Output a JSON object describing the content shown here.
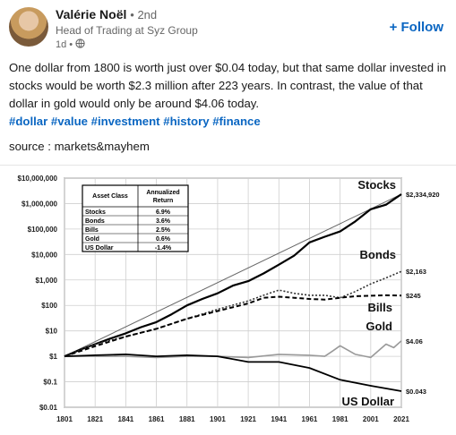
{
  "author": {
    "name": "Valérie Noël",
    "degree": "• 2nd",
    "headline": "Head of Trading at Syz Group",
    "time": "1d •"
  },
  "follow_label": "+ Follow",
  "post_text": "One dollar from 1800 is worth just over $0.04 today, but that same dollar invested in stocks would be worth $2.3 million after 223 years. In contrast, the value of that dollar in gold would only be around $4.06 today.",
  "hashtags": "#dollar #value #investment #history #finance",
  "source_text": "source : markets&mayhem",
  "chart_data": {
    "type": "line",
    "title": "",
    "xlabel": "",
    "ylabel": "",
    "y_scale": "log",
    "xlim": [
      1801,
      2021
    ],
    "ylim": [
      0.01,
      10000000
    ],
    "x_ticks": [
      "1801",
      "1821",
      "1841",
      "1861",
      "1881",
      "1901",
      "1921",
      "1941",
      "1961",
      "1981",
      "2001",
      "2021"
    ],
    "y_ticks": [
      "$10,000,000",
      "$1,000,000",
      "$100,000",
      "$10,000",
      "$1,000",
      "$100",
      "$10",
      "$1",
      "$0.1",
      "$0.01"
    ],
    "table": {
      "headers": [
        "Asset Class",
        "Annualized Return"
      ],
      "rows": [
        [
          "Stocks",
          "6.9%"
        ],
        [
          "Bonds",
          "3.6%"
        ],
        [
          "Bills",
          "2.5%"
        ],
        [
          "Gold",
          "0.6%"
        ],
        [
          "US Dollar",
          "-1.4%"
        ]
      ]
    },
    "series": [
      {
        "name": "Stocks",
        "end_label": "$2,334,920",
        "x": [
          1801,
          1811,
          1821,
          1831,
          1841,
          1851,
          1861,
          1871,
          1881,
          1891,
          1901,
          1911,
          1921,
          1931,
          1941,
          1951,
          1961,
          1971,
          1981,
          1991,
          2001,
          2011,
          2021
        ],
        "y": [
          1,
          1.8,
          3,
          5,
          8,
          14,
          22,
          45,
          100,
          180,
          300,
          600,
          900,
          1800,
          4000,
          9000,
          30000,
          50000,
          80000,
          200000,
          600000,
          900000,
          2334920
        ]
      },
      {
        "name": "Bonds",
        "end_label": "$2,163",
        "x": [
          1801,
          1821,
          1841,
          1861,
          1881,
          1901,
          1921,
          1931,
          1941,
          1951,
          1961,
          1971,
          1981,
          1991,
          2001,
          2011,
          2021
        ],
        "y": [
          1,
          3,
          6,
          12,
          30,
          70,
          150,
          250,
          400,
          300,
          250,
          250,
          200,
          350,
          700,
          1200,
          2163
        ]
      },
      {
        "name": "Bills",
        "end_label": "$245",
        "x": [
          1801,
          1821,
          1841,
          1861,
          1881,
          1901,
          1921,
          1931,
          1941,
          1951,
          1961,
          1971,
          1981,
          1991,
          2001,
          2011,
          2021
        ],
        "y": [
          1,
          2.5,
          6,
          12,
          30,
          60,
          120,
          200,
          220,
          200,
          180,
          170,
          200,
          230,
          240,
          250,
          245
        ]
      },
      {
        "name": "Gold",
        "end_label": "$4.06",
        "x": [
          1801,
          1821,
          1841,
          1861,
          1881,
          1901,
          1921,
          1941,
          1961,
          1971,
          1976,
          1981,
          1991,
          2001,
          2011,
          2016,
          2021
        ],
        "y": [
          1,
          1,
          1,
          0.9,
          1,
          1,
          0.9,
          1.2,
          1.1,
          1,
          1.6,
          2.6,
          1.2,
          0.9,
          3,
          2.2,
          4.06
        ]
      },
      {
        "name": "US Dollar",
        "end_label": "$0.043",
        "x": [
          1801,
          1821,
          1841,
          1861,
          1881,
          1901,
          1921,
          1941,
          1961,
          1981,
          2001,
          2021
        ],
        "y": [
          1,
          1.1,
          1.2,
          1,
          1.1,
          1,
          0.6,
          0.6,
          0.35,
          0.12,
          0.07,
          0.043
        ]
      }
    ]
  }
}
